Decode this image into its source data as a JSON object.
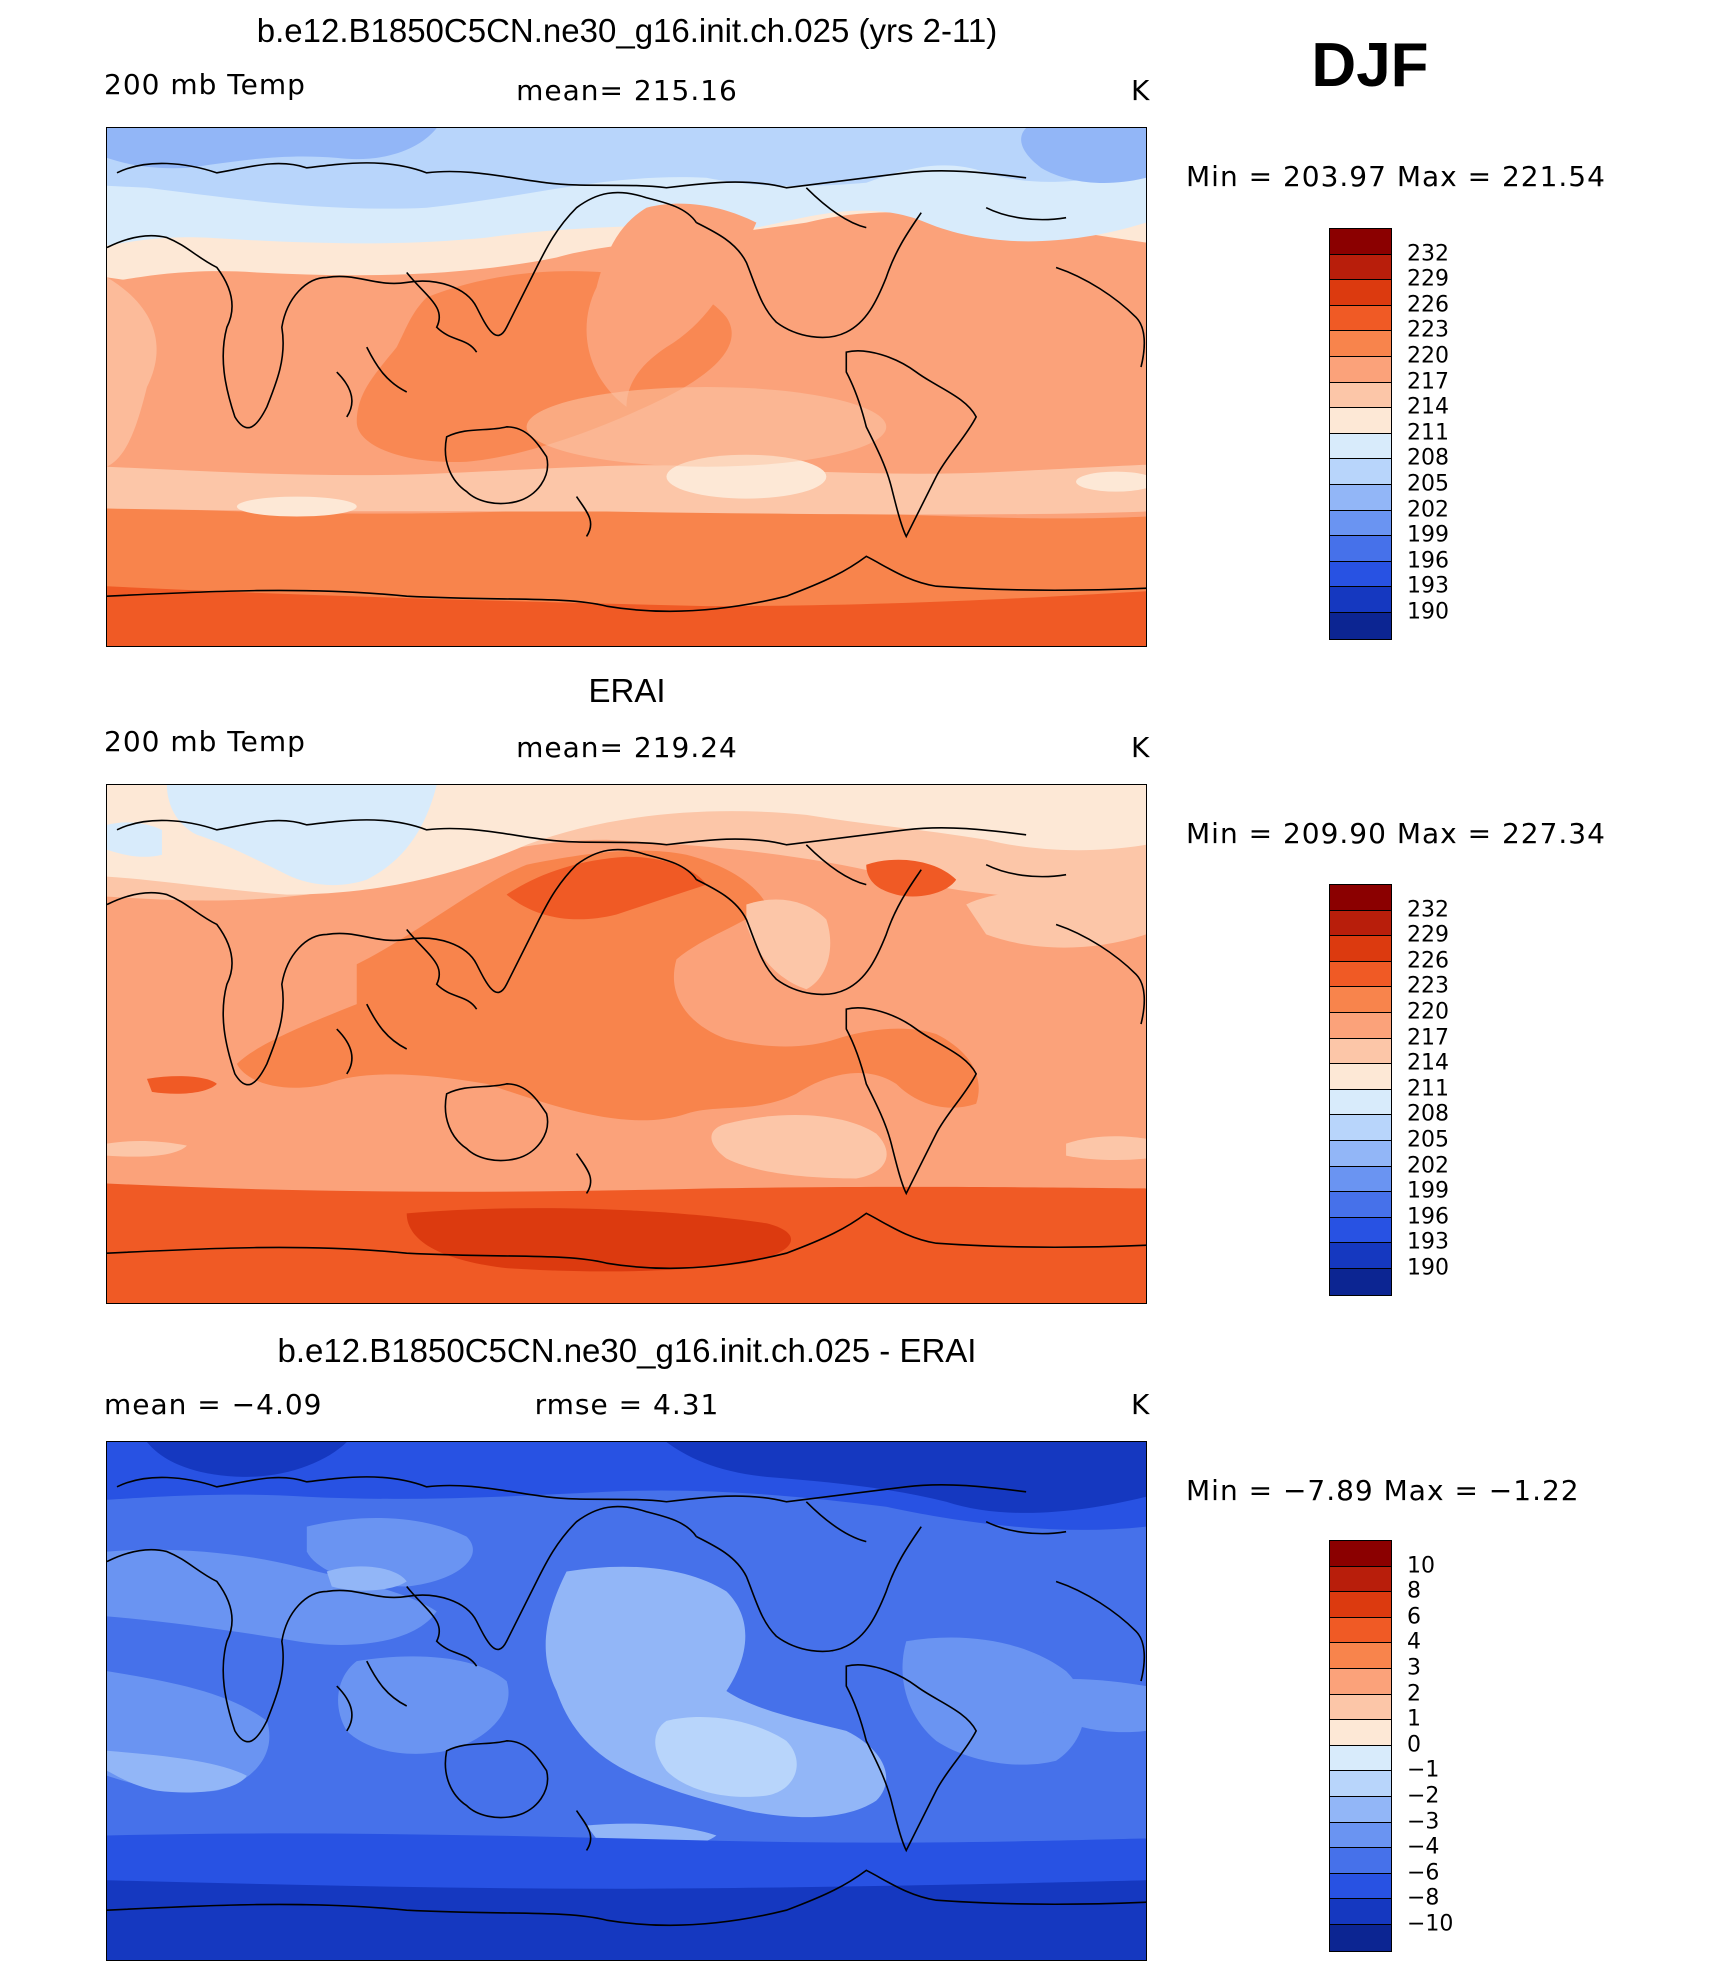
{
  "season": "DJF",
  "panels": [
    {
      "title": "b.e12.B1850C5CN.ne30_g16.init.ch.025 (yrs 2-11)",
      "left_label": "200 mb Temp",
      "center_label": "mean=  215.16",
      "units": "K",
      "minmax": "Min  =  203.97  Max  =  221.54",
      "field": "model 200 mb temperature"
    },
    {
      "title": "ERAI",
      "left_label": "200 mb Temp",
      "center_label": "mean=  219.24",
      "units": "K",
      "minmax": "Min  =  209.90  Max  =  227.34",
      "field": "ERAI 200 mb temperature"
    },
    {
      "title": "b.e12.B1850C5CN.ne30_g16.init.ch.025 - ERAI",
      "left_label": "mean  =    −4.09",
      "center_label": "rmse  =     4.31",
      "units": "K",
      "minmax": "Min  =   −7.89  Max  =   −1.22",
      "field": "difference"
    }
  ],
  "colorbars": {
    "temperature": {
      "colors": [
        "#8b0000",
        "#b81e0b",
        "#dc3a0f",
        "#f05a25",
        "#f8844c",
        "#fba27a",
        "#fcc6a8",
        "#fde8d6",
        "#d8ebfb",
        "#b8d5fb",
        "#92b6f7",
        "#6a94f2",
        "#4671ea",
        "#2852e3",
        "#1538c0",
        "#0c2592",
        "#04106e"
      ],
      "labels": [
        "232",
        "229",
        "226",
        "223",
        "220",
        "217",
        "214",
        "211",
        "208",
        "205",
        "202",
        "199",
        "196",
        "193",
        "190"
      ]
    },
    "difference": {
      "colors": [
        "#8b0000",
        "#b81e0b",
        "#dc3a0f",
        "#f05a25",
        "#f8844c",
        "#fba27a",
        "#fcc6a8",
        "#fde8d6",
        "#d8ebfb",
        "#b8d5fb",
        "#92b6f7",
        "#6a94f2",
        "#4671ea",
        "#2852e3",
        "#1538c0",
        "#0c2592",
        "#04106e"
      ],
      "labels": [
        "10",
        "8",
        "6",
        "4",
        "3",
        "2",
        "1",
        "0",
        "−1",
        "−2",
        "−3",
        "−4",
        "−6",
        "−8",
        "−10"
      ]
    }
  }
}
